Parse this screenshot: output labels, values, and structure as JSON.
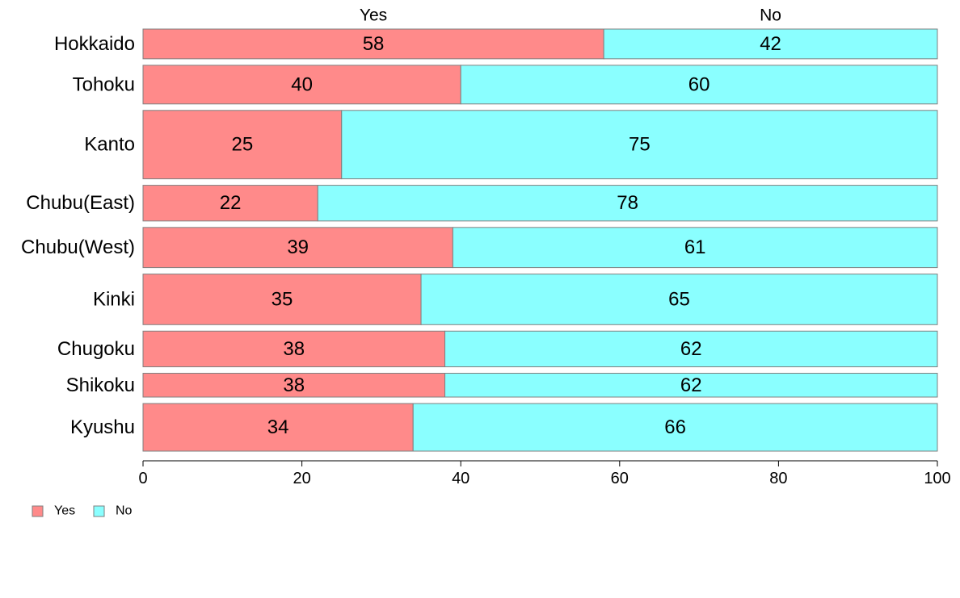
{
  "chart_data": {
    "type": "bar",
    "orientation": "horizontal",
    "stacked": true,
    "categories": [
      "Hokkaido",
      "Tohoku",
      "Kanto",
      "Chubu(East)",
      "Chubu(West)",
      "Kinki",
      "Chugoku",
      "Shikoku",
      "Kyushu"
    ],
    "series": [
      {
        "name": "Yes",
        "color": "#FF8A8A",
        "values": [
          58,
          40,
          25,
          22,
          39,
          35,
          38,
          38,
          34
        ]
      },
      {
        "name": "No",
        "color": "#8AFFFF",
        "values": [
          42,
          60,
          75,
          78,
          61,
          65,
          62,
          62,
          66
        ]
      }
    ],
    "data_labels": [
      [
        "58",
        "42"
      ],
      [
        "40",
        "60"
      ],
      [
        "25",
        "75"
      ],
      [
        "22",
        "78"
      ],
      [
        "39",
        "61"
      ],
      [
        "35",
        "65"
      ],
      [
        "38",
        "62"
      ],
      [
        "38",
        "62"
      ],
      [
        "34",
        "66"
      ]
    ],
    "category_weights": [
      1,
      1.3,
      2.3,
      1.2,
      1.35,
      1.7,
      1.2,
      0.8,
      1.6
    ],
    "top_labels": [
      "Yes",
      "No"
    ],
    "x_ticks": [
      "0",
      "20",
      "40",
      "60",
      "80",
      "100"
    ],
    "xlim": [
      0,
      100
    ],
    "grid": false,
    "legend": {
      "position": "bottom-left",
      "items": [
        {
          "label": "Yes",
          "color": "#FF8A8A"
        },
        {
          "label": "No",
          "color": "#8AFFFF"
        }
      ]
    },
    "title": "",
    "xlabel": "",
    "ylabel": ""
  }
}
